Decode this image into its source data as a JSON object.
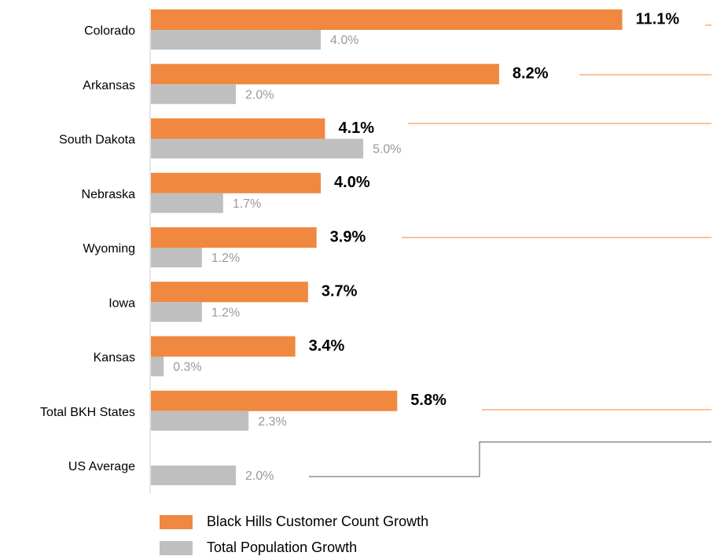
{
  "chart_data": {
    "type": "bar",
    "orientation": "horizontal",
    "categories": [
      "Colorado",
      "Arkansas",
      "South Dakota",
      "Nebraska",
      "Wyoming",
      "Iowa",
      "Kansas",
      "Total BKH States",
      "US Average"
    ],
    "series": [
      {
        "name": "Black Hills Customer Count Growth",
        "color": "#f0883f",
        "values": [
          11.1,
          8.2,
          4.1,
          4.0,
          3.9,
          3.7,
          3.4,
          5.8,
          null
        ],
        "value_labels": [
          "11.1%",
          "8.2%",
          "4.1%",
          "4.0%",
          "3.9%",
          "3.7%",
          "3.4%",
          "5.8%",
          null
        ]
      },
      {
        "name": "Total Population Growth",
        "color": "#bfbfbf",
        "values": [
          4.0,
          2.0,
          5.0,
          1.7,
          1.2,
          1.2,
          0.3,
          2.3,
          2.0
        ],
        "value_labels": [
          "4.0%",
          "2.0%",
          "5.0%",
          "1.7%",
          "1.2%",
          "1.2%",
          "0.3%",
          "2.3%",
          "2.0%"
        ]
      }
    ],
    "xlim": [
      0,
      13.2
    ]
  }
}
